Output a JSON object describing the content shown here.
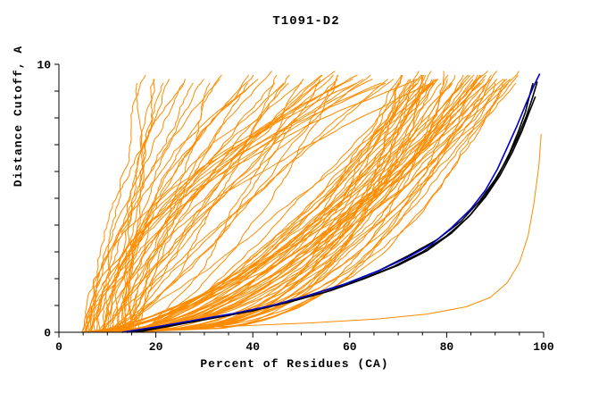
{
  "chart_data": {
    "type": "line",
    "title": "T1091-D2",
    "xlabel": "Percent of Residues (CA)",
    "ylabel": "Distance Cutoff, A",
    "xlim": [
      0,
      100
    ],
    "ylim": [
      0,
      10
    ],
    "x_major_ticks": [
      0,
      20,
      40,
      60,
      80,
      100
    ],
    "x_minor_step": 5,
    "y_tick_step": 1,
    "y_labeled_ticks": [
      0,
      10
    ],
    "grid": false,
    "legend": "none",
    "colors": {
      "ensemble": "#ff8c00",
      "best_model": "#0000cc",
      "reference": "#000000",
      "axis": "#000000",
      "background": "#ffffff"
    },
    "series": [
      {
        "name": "orange-low-tail-curve",
        "color": "#ff8c00",
        "width": 1,
        "points": [
          [
            8,
            0.05
          ],
          [
            22,
            0.14
          ],
          [
            38,
            0.24
          ],
          [
            52,
            0.35
          ],
          [
            66,
            0.5
          ],
          [
            76,
            0.68
          ],
          [
            84,
            0.95
          ],
          [
            89,
            1.3
          ],
          [
            92.5,
            1.85
          ],
          [
            95,
            2.6
          ],
          [
            96.8,
            3.6
          ],
          [
            98,
            4.8
          ],
          [
            99,
            6.2
          ],
          [
            99.5,
            7.4
          ]
        ]
      },
      {
        "name": "black-model-curve-1",
        "color": "#000000",
        "width": 1.6,
        "points": [
          [
            15,
            0
          ],
          [
            23,
            0.25
          ],
          [
            31,
            0.5
          ],
          [
            40,
            0.8
          ],
          [
            48,
            1.15
          ],
          [
            56,
            1.55
          ],
          [
            63,
            2.0
          ],
          [
            70,
            2.5
          ],
          [
            76,
            3.05
          ],
          [
            81,
            3.7
          ],
          [
            85,
            4.4
          ],
          [
            88,
            5.1
          ],
          [
            90.8,
            5.9
          ],
          [
            93,
            6.7
          ],
          [
            94.8,
            7.5
          ],
          [
            96.2,
            8.2
          ],
          [
            97.2,
            8.9
          ],
          [
            97.8,
            9.3
          ]
        ]
      },
      {
        "name": "black-model-curve-2",
        "color": "#000000",
        "width": 1.6,
        "points": [
          [
            16,
            0
          ],
          [
            25,
            0.3
          ],
          [
            34,
            0.6
          ],
          [
            43,
            0.95
          ],
          [
            51,
            1.35
          ],
          [
            59,
            1.8
          ],
          [
            66,
            2.3
          ],
          [
            72,
            2.85
          ],
          [
            78,
            3.45
          ],
          [
            83,
            4.15
          ],
          [
            86.8,
            4.9
          ],
          [
            90,
            5.7
          ],
          [
            92.6,
            6.5
          ],
          [
            94.7,
            7.3
          ],
          [
            96.4,
            8.05
          ],
          [
            97.7,
            8.75
          ],
          [
            98.7,
            9.35
          ]
        ]
      },
      {
        "name": "black-model-curve-3",
        "color": "#000000",
        "width": 1.6,
        "points": [
          [
            14,
            0
          ],
          [
            22,
            0.22
          ],
          [
            30,
            0.48
          ],
          [
            39,
            0.78
          ],
          [
            47,
            1.1
          ],
          [
            55,
            1.5
          ],
          [
            62,
            1.95
          ],
          [
            69,
            2.45
          ],
          [
            75,
            3.0
          ],
          [
            80,
            3.6
          ],
          [
            84.5,
            4.3
          ],
          [
            88,
            5.05
          ],
          [
            91,
            5.85
          ],
          [
            93.5,
            6.7
          ],
          [
            95.5,
            7.5
          ],
          [
            97,
            8.2
          ],
          [
            98.3,
            8.8
          ]
        ]
      },
      {
        "name": "blue-model-curve",
        "color": "#0000cc",
        "width": 1.6,
        "points": [
          [
            13,
            0
          ],
          [
            20,
            0.2
          ],
          [
            28,
            0.45
          ],
          [
            36,
            0.7
          ],
          [
            44,
            1.0
          ],
          [
            52,
            1.4
          ],
          [
            59,
            1.8
          ],
          [
            66,
            2.3
          ],
          [
            72,
            2.8
          ],
          [
            77,
            3.3
          ],
          [
            81,
            3.9
          ],
          [
            85,
            4.6
          ],
          [
            88,
            5.3
          ],
          [
            90.5,
            6.1
          ],
          [
            92.5,
            6.9
          ],
          [
            94.5,
            7.7
          ],
          [
            96.3,
            8.5
          ],
          [
            98,
            9.2
          ],
          [
            99.2,
            9.65
          ]
        ]
      }
    ],
    "ensemble_generator": {
      "seed": 20250417,
      "groups": [
        {
          "name": "steep-poor-models",
          "count": 50,
          "x_start": [
            4.5,
            16
          ],
          "x_end": [
            18,
            78
          ],
          "shape": [
            0.6,
            2.2
          ]
        },
        {
          "name": "shallow-good-models",
          "count": 58,
          "x_start": [
            5,
            16
          ],
          "x_end": [
            70,
            99.5
          ],
          "shape": [
            0.25,
            0.7
          ]
        }
      ],
      "y_top": [
        9.3,
        9.8
      ],
      "jitter": 0.7,
      "y_step": 0.15
    }
  }
}
